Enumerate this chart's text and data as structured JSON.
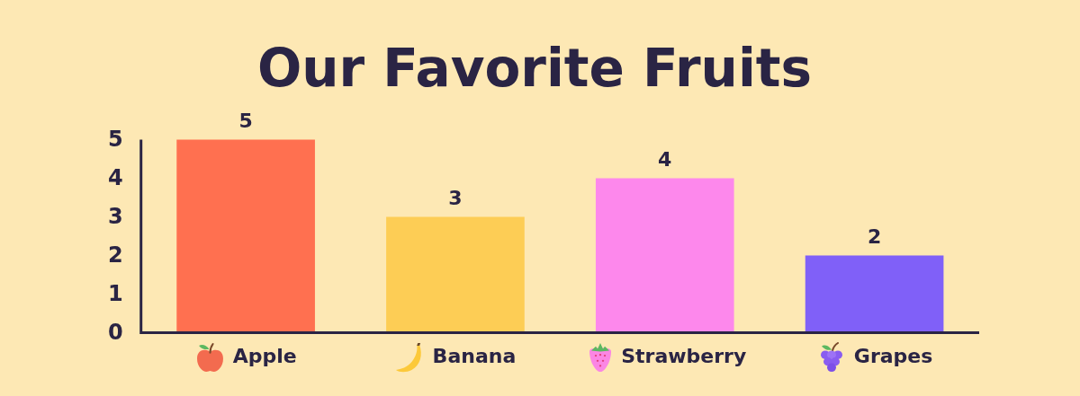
{
  "chart_data": {
    "type": "bar",
    "title": "Our Favorite Fruits",
    "categories": [
      "Apple",
      "Banana",
      "Strawberry",
      "Grapes"
    ],
    "values": [
      5,
      3,
      4,
      2
    ],
    "colors": [
      "#ff7050",
      "#fdcd55",
      "#fd88ec",
      "#8060f8"
    ],
    "ylim": [
      0,
      5
    ],
    "yticks": [
      0,
      1,
      2,
      3,
      4,
      5
    ],
    "grid": false,
    "legend": false,
    "data_labels": true
  }
}
